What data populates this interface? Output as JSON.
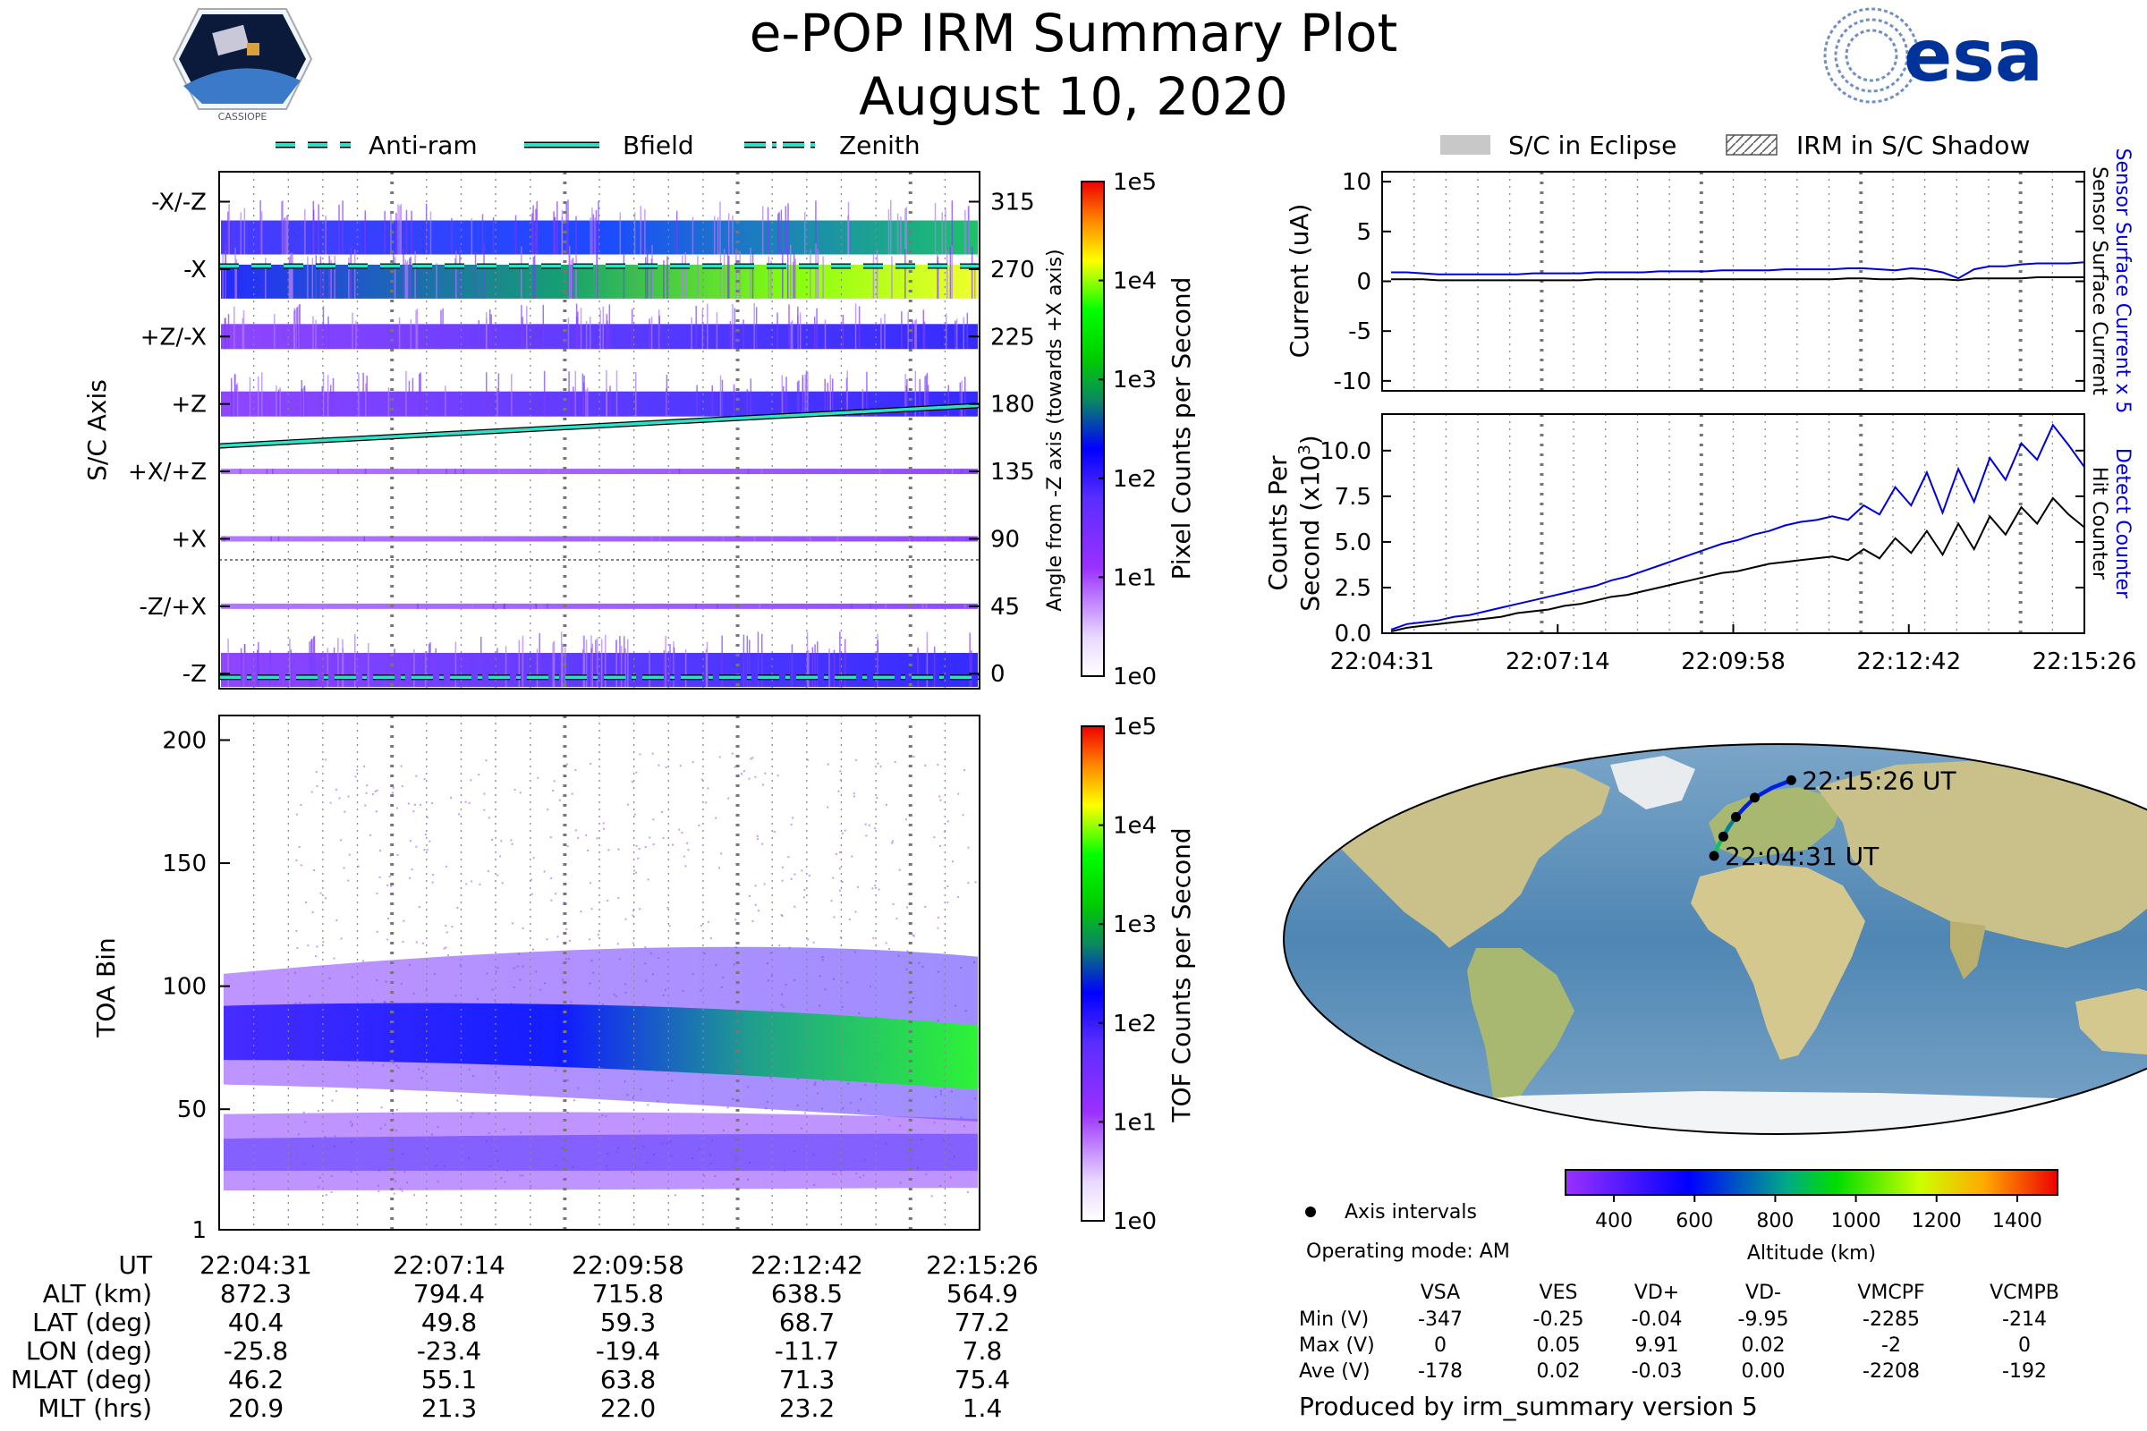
{
  "header": {
    "title": "e-POP IRM Summary Plot",
    "date": "August 10, 2020",
    "logo_left_text": "CASSIOPE",
    "logo_right_text": "esa"
  },
  "legend_top_left": {
    "anti_ram": "Anti-ram",
    "bfield": "Bfield",
    "zenith": "Zenith"
  },
  "legend_top_right": {
    "eclipse": "S/C in Eclipse",
    "shadow": "IRM in S/C Shadow"
  },
  "colors": {
    "accent_cyan": "#2de0c8",
    "line_blue": "#0000dd",
    "line_black": "#000000",
    "ocean": "#5a8fb8",
    "land": "#c9c08a",
    "esa_blue": "#003399"
  },
  "chart_data": [
    {
      "id": "pixel_counts",
      "type": "heatmap",
      "ylabel": "S/C Axis",
      "ylabel_right": "Angle from -Z axis (towards +X axis)",
      "y_axis_labels": [
        "-X/-Z",
        "-X",
        "+Z/-X",
        "+Z",
        "+X/+Z",
        "+X",
        "-Z/+X",
        "-Z"
      ],
      "y_right_ticks": [
        315,
        270,
        225,
        180,
        135,
        90,
        45,
        0
      ],
      "ylim": [
        -10,
        335
      ],
      "bands": [
        {
          "center": 315,
          "low": 60,
          "high": 1000
        },
        {
          "center": 270,
          "low": 150,
          "high": 2500
        },
        {
          "center": 225,
          "low": 10,
          "high": 60
        },
        {
          "center": 180,
          "low": 10,
          "high": 60
        },
        {
          "center": 135,
          "low": 4,
          "high": 6
        },
        {
          "center": 90,
          "low": 2,
          "high": 3
        },
        {
          "center": 45,
          "low": 3,
          "high": 4
        },
        {
          "center": 0,
          "low": 10,
          "high": 100
        }
      ],
      "bfield_angle": {
        "start": 152,
        "end": 179
      },
      "anti_ram_angle": 272,
      "zenith_angle": 0,
      "colorbar": {
        "label": "Pixel Counts per Second",
        "ticks": [
          "1e5",
          "1e4",
          "1e3",
          "1e2",
          "1e1",
          "1e0"
        ]
      }
    },
    {
      "id": "tof_counts",
      "type": "heatmap",
      "ylabel": "TOA Bin",
      "y_ticks": [
        200,
        150,
        100,
        50,
        1
      ],
      "ylim": [
        1,
        210
      ],
      "colorbar": {
        "label": "TOF Counts per Second",
        "ticks": [
          "1e5",
          "1e4",
          "1e3",
          "1e2",
          "1e1",
          "1e0"
        ]
      }
    },
    {
      "id": "current",
      "type": "line",
      "ylabel": "Current (uA)",
      "y_ticks": [
        10,
        5,
        0,
        -5,
        -10
      ],
      "ylim": [
        -11,
        11
      ],
      "right_labels": {
        "blue": "Sensor Surface Current x 5",
        "black": "Sensor Surface Current"
      },
      "series": [
        {
          "name": "Sensor Surface Current x 5",
          "color": "blue",
          "values": [
            0.9,
            0.9,
            0.8,
            0.7,
            0.7,
            0.7,
            0.7,
            0.7,
            0.7,
            0.8,
            0.8,
            0.8,
            0.8,
            0.9,
            0.9,
            0.9,
            0.9,
            1.0,
            1.0,
            1.0,
            1.0,
            1.1,
            1.1,
            1.1,
            1.1,
            1.2,
            1.2,
            1.2,
            1.2,
            1.3,
            1.3,
            1.2,
            1.1,
            1.3,
            1.2,
            0.9,
            0.3,
            1.2,
            1.5,
            1.5,
            1.7,
            1.8,
            1.8,
            1.8,
            1.9
          ]
        },
        {
          "name": "Sensor Surface Current",
          "color": "black",
          "values": [
            0.2,
            0.2,
            0.2,
            0.1,
            0.1,
            0.1,
            0.1,
            0.1,
            0.1,
            0.1,
            0.1,
            0.1,
            0.1,
            0.2,
            0.2,
            0.2,
            0.2,
            0.2,
            0.2,
            0.2,
            0.2,
            0.2,
            0.2,
            0.2,
            0.2,
            0.2,
            0.2,
            0.2,
            0.2,
            0.3,
            0.3,
            0.2,
            0.2,
            0.3,
            0.2,
            0.2,
            0.1,
            0.3,
            0.3,
            0.3,
            0.3,
            0.4,
            0.4,
            0.4,
            0.4
          ]
        }
      ]
    },
    {
      "id": "counts",
      "type": "line",
      "ylabel": "Counts Per Second (x10³)",
      "ylabel_line1": "Counts Per",
      "ylabel_line2": "Second (x10",
      "ylabel_sup": "3",
      "ylabel_close": ")",
      "y_ticks": [
        "10.0",
        "7.5",
        "5.0",
        "2.5",
        "0.0"
      ],
      "ylim": [
        0,
        12
      ],
      "right_labels": {
        "blue": "Detect Counter",
        "black": "Hit Counter"
      },
      "series": [
        {
          "name": "Detect Counter",
          "color": "blue",
          "values": [
            0.2,
            0.5,
            0.6,
            0.7,
            0.9,
            1.0,
            1.2,
            1.4,
            1.6,
            1.8,
            2.0,
            2.2,
            2.4,
            2.6,
            2.9,
            3.1,
            3.4,
            3.7,
            4.0,
            4.3,
            4.6,
            4.9,
            5.1,
            5.4,
            5.6,
            5.9,
            6.1,
            6.2,
            6.4,
            6.2,
            7.0,
            6.5,
            8.0,
            7.0,
            8.8,
            6.6,
            9.0,
            7.2,
            9.6,
            8.4,
            10.4,
            9.5,
            11.4,
            10.3,
            9.1
          ]
        },
        {
          "name": "Hit Counter",
          "color": "black",
          "values": [
            0.1,
            0.3,
            0.4,
            0.5,
            0.6,
            0.7,
            0.8,
            0.9,
            1.1,
            1.2,
            1.3,
            1.5,
            1.6,
            1.8,
            2.0,
            2.1,
            2.3,
            2.5,
            2.7,
            2.9,
            3.1,
            3.3,
            3.4,
            3.6,
            3.8,
            3.9,
            4.0,
            4.1,
            4.2,
            4.0,
            4.6,
            4.1,
            5.2,
            4.4,
            5.6,
            4.3,
            6.0,
            4.6,
            6.4,
            5.4,
            6.9,
            6.0,
            7.4,
            6.5,
            5.8
          ]
        }
      ]
    }
  ],
  "time_axis": {
    "ticks": [
      "22:04:31",
      "22:07:14",
      "22:09:58",
      "22:12:42",
      "22:15:26"
    ]
  },
  "ephemeris": {
    "row_labels": [
      "UT",
      "ALT (km)",
      "LAT (deg)",
      "LON (deg)",
      "MLAT (deg)",
      "MLT (hrs)"
    ],
    "rows": [
      [
        "22:04:31",
        "22:07:14",
        "22:09:58",
        "22:12:42",
        "22:15:26"
      ],
      [
        "872.3",
        "794.4",
        "715.8",
        "638.5",
        "564.9"
      ],
      [
        "40.4",
        "49.8",
        "59.3",
        "68.7",
        "77.2"
      ],
      [
        "-25.8",
        "-23.4",
        "-19.4",
        "-11.7",
        "7.8"
      ],
      [
        "46.2",
        "55.1",
        "63.8",
        "71.3",
        "75.4"
      ],
      [
        "20.9",
        "21.3",
        "22.0",
        "23.2",
        "1.4"
      ]
    ]
  },
  "map": {
    "start_label": "22:04:31 UT",
    "end_label": "22:15:26 UT",
    "track": [
      {
        "lon": -25.8,
        "lat": 40.4
      },
      {
        "lon": -25.0,
        "lat": 45.0
      },
      {
        "lon": -23.4,
        "lat": 49.8
      },
      {
        "lon": -21.8,
        "lat": 54.5
      },
      {
        "lon": -19.4,
        "lat": 59.3
      },
      {
        "lon": -16.0,
        "lat": 64.0
      },
      {
        "lon": -11.7,
        "lat": 68.7
      },
      {
        "lon": -3.0,
        "lat": 73.5
      },
      {
        "lon": 7.8,
        "lat": 77.2
      }
    ],
    "axis_interval_points": [
      {
        "lon": -25.8,
        "lat": 40.4
      },
      {
        "lon": -23.4,
        "lat": 49.8
      },
      {
        "lon": -19.4,
        "lat": 59.3
      },
      {
        "lon": -11.7,
        "lat": 68.7
      },
      {
        "lon": 7.8,
        "lat": 77.2
      }
    ],
    "axis_intervals_label": "Axis intervals",
    "operating_mode": "Operating mode: AM"
  },
  "altitude_colorbar": {
    "label": "Altitude (km)",
    "ticks": [
      400,
      600,
      800,
      1000,
      1200,
      1400
    ],
    "range": [
      280,
      1500
    ]
  },
  "voltage_table": {
    "columns": [
      "VSA",
      "VES",
      "VD+",
      "VD-",
      "VMCPF",
      "VCMPB"
    ],
    "rows": [
      {
        "label": "Min (V)",
        "values": [
          "-347",
          "-0.25",
          "-0.04",
          "-9.95",
          "-2285",
          "-214"
        ]
      },
      {
        "label": "Max (V)",
        "values": [
          "0",
          "0.05",
          "9.91",
          "0.02",
          "-2",
          "0"
        ]
      },
      {
        "label": "Ave (V)",
        "values": [
          "-178",
          "0.02",
          "-0.03",
          "0.00",
          "-2208",
          "-192"
        ]
      }
    ]
  },
  "footer": "Produced by irm_summary version 5"
}
